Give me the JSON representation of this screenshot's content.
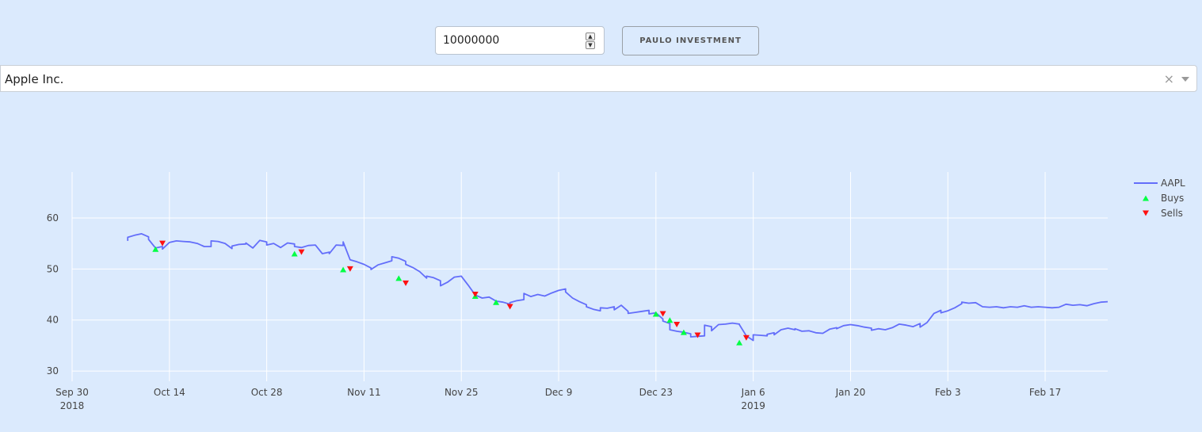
{
  "controls": {
    "amount_value": "10000000",
    "invest_button_label": "PAULO INVESTMENT",
    "company_selected": "Apple Inc.",
    "clear_symbol": "×"
  },
  "colors": {
    "background": "#dbeafd",
    "line": "#636efa",
    "buys": "#00ff44",
    "sells": "#ff1111",
    "grid": "#ffffff"
  },
  "chart_data": {
    "type": "line",
    "x_axis": {
      "type": "date",
      "range": [
        "2018-09-30",
        "2019-02-26"
      ],
      "ticks": [
        {
          "date": "2018-09-30",
          "label": "Sep 30",
          "sub": "2018"
        },
        {
          "date": "2018-10-14",
          "label": "Oct 14",
          "sub": ""
        },
        {
          "date": "2018-10-28",
          "label": "Oct 28",
          "sub": ""
        },
        {
          "date": "2018-11-11",
          "label": "Nov 11",
          "sub": ""
        },
        {
          "date": "2018-11-25",
          "label": "Nov 25",
          "sub": ""
        },
        {
          "date": "2018-12-09",
          "label": "Dec 9",
          "sub": ""
        },
        {
          "date": "2018-12-23",
          "label": "Dec 23",
          "sub": ""
        },
        {
          "date": "2019-01-06",
          "label": "Jan 6",
          "sub": "2019"
        },
        {
          "date": "2019-01-20",
          "label": "Jan 20",
          "sub": ""
        },
        {
          "date": "2019-02-03",
          "label": "Feb 3",
          "sub": ""
        },
        {
          "date": "2019-02-17",
          "label": "Feb 17",
          "sub": ""
        }
      ]
    },
    "y_axis": {
      "range": [
        28,
        69
      ],
      "ticks": [
        30,
        40,
        50,
        60
      ]
    },
    "grid": true,
    "legend": {
      "position": "top-right",
      "entries": [
        "AAPL",
        "Buys",
        "Sells"
      ]
    },
    "series": [
      {
        "name": "AAPL",
        "kind": "line",
        "points": [
          [
            "2018-10-08",
            55.5
          ],
          [
            "2018-10-08",
            56.2
          ],
          [
            "2018-10-09",
            56.6
          ],
          [
            "2018-10-10",
            56.9
          ],
          [
            "2018-10-11",
            56.3
          ],
          [
            "2018-10-11",
            55.8
          ],
          [
            "2018-10-12",
            54.1
          ],
          [
            "2018-10-13",
            54.4
          ],
          [
            "2018-10-13",
            53.9
          ],
          [
            "2018-10-14",
            55.2
          ],
          [
            "2018-10-15",
            55.5
          ],
          [
            "2018-10-16",
            55.4
          ],
          [
            "2018-10-17",
            55.3
          ],
          [
            "2018-10-18",
            55.0
          ],
          [
            "2018-10-19",
            54.4
          ],
          [
            "2018-10-20",
            54.4
          ],
          [
            "2018-10-20",
            55.5
          ],
          [
            "2018-10-21",
            55.4
          ],
          [
            "2018-10-22",
            55.0
          ],
          [
            "2018-10-23",
            54.0
          ],
          [
            "2018-10-23",
            54.5
          ],
          [
            "2018-10-24",
            54.8
          ],
          [
            "2018-10-25",
            54.9
          ],
          [
            "2018-10-25",
            55.1
          ],
          [
            "2018-10-26",
            54.1
          ],
          [
            "2018-10-27",
            55.6
          ],
          [
            "2018-10-28",
            55.3
          ],
          [
            "2018-10-28",
            54.7
          ],
          [
            "2018-10-29",
            55.0
          ],
          [
            "2018-10-30",
            54.2
          ],
          [
            "2018-10-31",
            55.1
          ],
          [
            "2018-11-01",
            54.9
          ],
          [
            "2018-11-01",
            54.4
          ],
          [
            "2018-11-02",
            54.2
          ],
          [
            "2018-11-03",
            54.6
          ],
          [
            "2018-11-04",
            54.7
          ],
          [
            "2018-11-05",
            53.0
          ],
          [
            "2018-11-06",
            53.3
          ],
          [
            "2018-11-06",
            53.0
          ],
          [
            "2018-11-07",
            54.7
          ],
          [
            "2018-11-08",
            54.6
          ],
          [
            "2018-11-08",
            55.3
          ],
          [
            "2018-11-09",
            51.8
          ],
          [
            "2018-11-10",
            51.4
          ],
          [
            "2018-11-11",
            50.9
          ],
          [
            "2018-11-12",
            50.2
          ],
          [
            "2018-11-12",
            49.9
          ],
          [
            "2018-11-13",
            50.8
          ],
          [
            "2018-11-14",
            51.2
          ],
          [
            "2018-11-15",
            51.6
          ],
          [
            "2018-11-15",
            52.4
          ],
          [
            "2018-11-16",
            52.1
          ],
          [
            "2018-11-17",
            51.5
          ],
          [
            "2018-11-17",
            50.9
          ],
          [
            "2018-11-18",
            50.3
          ],
          [
            "2018-11-19",
            49.5
          ],
          [
            "2018-11-20",
            48.2
          ],
          [
            "2018-11-20",
            48.6
          ],
          [
            "2018-11-21",
            48.3
          ],
          [
            "2018-11-22",
            47.7
          ],
          [
            "2018-11-22",
            46.7
          ],
          [
            "2018-11-23",
            47.4
          ],
          [
            "2018-11-24",
            48.4
          ],
          [
            "2018-11-25",
            48.6
          ],
          [
            "2018-11-26",
            46.8
          ],
          [
            "2018-11-27",
            44.9
          ],
          [
            "2018-11-28",
            44.3
          ],
          [
            "2018-11-29",
            44.5
          ],
          [
            "2018-11-30",
            43.7
          ],
          [
            "2018-12-01",
            43.5
          ],
          [
            "2018-12-02",
            43.1
          ],
          [
            "2018-12-02",
            43.4
          ],
          [
            "2018-12-03",
            43.8
          ],
          [
            "2018-12-04",
            44.0
          ],
          [
            "2018-12-04",
            45.2
          ],
          [
            "2018-12-05",
            44.6
          ],
          [
            "2018-12-06",
            45.0
          ],
          [
            "2018-12-07",
            44.7
          ],
          [
            "2018-12-08",
            45.3
          ],
          [
            "2018-12-09",
            45.8
          ],
          [
            "2018-12-10",
            46.1
          ],
          [
            "2018-12-10",
            45.5
          ],
          [
            "2018-12-11",
            44.3
          ],
          [
            "2018-12-12",
            43.6
          ],
          [
            "2018-12-13",
            43.0
          ],
          [
            "2018-12-13",
            42.6
          ],
          [
            "2018-12-14",
            42.1
          ],
          [
            "2018-12-15",
            41.8
          ],
          [
            "2018-12-15",
            42.4
          ],
          [
            "2018-12-16",
            42.3
          ],
          [
            "2018-12-17",
            42.6
          ],
          [
            "2018-12-17",
            42.0
          ],
          [
            "2018-12-18",
            42.9
          ],
          [
            "2018-12-19",
            41.7
          ],
          [
            "2018-12-19",
            41.3
          ],
          [
            "2018-12-20",
            41.5
          ],
          [
            "2018-12-21",
            41.7
          ],
          [
            "2018-12-22",
            41.9
          ],
          [
            "2018-12-22",
            41.2
          ],
          [
            "2018-12-23",
            41.4
          ],
          [
            "2018-12-24",
            40.2
          ],
          [
            "2018-12-24",
            39.8
          ],
          [
            "2018-12-25",
            39.3
          ],
          [
            "2018-12-25",
            38.1
          ],
          [
            "2018-12-26",
            37.8
          ],
          [
            "2018-12-27",
            37.6
          ],
          [
            "2018-12-28",
            37.3
          ],
          [
            "2018-12-28",
            36.7
          ],
          [
            "2018-12-29",
            36.8
          ],
          [
            "2018-12-30",
            36.9
          ],
          [
            "2018-12-30",
            39.0
          ],
          [
            "2018-12-31",
            38.7
          ],
          [
            "2018-12-31",
            37.9
          ],
          [
            "2019-01-01",
            39.1
          ],
          [
            "2019-01-02",
            39.2
          ],
          [
            "2019-01-03",
            39.4
          ],
          [
            "2019-01-04",
            39.2
          ],
          [
            "2019-01-04",
            39.1
          ],
          [
            "2019-01-05",
            36.9
          ],
          [
            "2019-01-06",
            36.0
          ],
          [
            "2019-01-06",
            37.1
          ],
          [
            "2019-01-07",
            37.0
          ],
          [
            "2019-01-08",
            36.9
          ],
          [
            "2019-01-08",
            37.2
          ],
          [
            "2019-01-09",
            37.5
          ],
          [
            "2019-01-09",
            37.1
          ],
          [
            "2019-01-10",
            38.1
          ],
          [
            "2019-01-11",
            38.4
          ],
          [
            "2019-01-12",
            38.1
          ],
          [
            "2019-01-12",
            38.3
          ],
          [
            "2019-01-13",
            37.8
          ],
          [
            "2019-01-14",
            37.9
          ],
          [
            "2019-01-15",
            37.5
          ],
          [
            "2019-01-16",
            37.4
          ],
          [
            "2019-01-17",
            38.2
          ],
          [
            "2019-01-18",
            38.5
          ],
          [
            "2019-01-18",
            38.3
          ],
          [
            "2019-01-19",
            38.9
          ],
          [
            "2019-01-20",
            39.1
          ],
          [
            "2019-01-21",
            38.9
          ],
          [
            "2019-01-22",
            38.6
          ],
          [
            "2019-01-23",
            38.4
          ],
          [
            "2019-01-23",
            38.0
          ],
          [
            "2019-01-24",
            38.3
          ],
          [
            "2019-01-25",
            38.1
          ],
          [
            "2019-01-26",
            38.5
          ],
          [
            "2019-01-27",
            39.2
          ],
          [
            "2019-01-28",
            39.0
          ],
          [
            "2019-01-29",
            38.7
          ],
          [
            "2019-01-30",
            39.3
          ],
          [
            "2019-01-30",
            38.6
          ],
          [
            "2019-01-31",
            39.5
          ],
          [
            "2019-02-01",
            41.3
          ],
          [
            "2019-02-02",
            41.9
          ],
          [
            "2019-02-02",
            41.4
          ],
          [
            "2019-02-03",
            41.8
          ],
          [
            "2019-02-04",
            42.4
          ],
          [
            "2019-02-05",
            43.2
          ],
          [
            "2019-02-05",
            43.5
          ],
          [
            "2019-02-06",
            43.3
          ],
          [
            "2019-02-07",
            43.4
          ],
          [
            "2019-02-08",
            42.6
          ],
          [
            "2019-02-09",
            42.5
          ],
          [
            "2019-02-10",
            42.6
          ],
          [
            "2019-02-11",
            42.4
          ],
          [
            "2019-02-12",
            42.6
          ],
          [
            "2019-02-13",
            42.5
          ],
          [
            "2019-02-14",
            42.8
          ],
          [
            "2019-02-15",
            42.5
          ],
          [
            "2019-02-16",
            42.6
          ],
          [
            "2019-02-17",
            42.5
          ],
          [
            "2019-02-18",
            42.4
          ],
          [
            "2019-02-19",
            42.5
          ],
          [
            "2019-02-20",
            43.1
          ],
          [
            "2019-02-21",
            42.9
          ],
          [
            "2019-02-22",
            43.0
          ],
          [
            "2019-02-23",
            42.8
          ],
          [
            "2019-02-24",
            43.2
          ],
          [
            "2019-02-25",
            43.5
          ],
          [
            "2019-02-26",
            43.6
          ]
        ]
      },
      {
        "name": "Buys",
        "kind": "markers-up",
        "points": [
          [
            "2018-10-12",
            53.9
          ],
          [
            "2018-11-01",
            53.0
          ],
          [
            "2018-11-08",
            49.9
          ],
          [
            "2018-11-16",
            48.2
          ],
          [
            "2018-11-27",
            44.7
          ],
          [
            "2018-11-30",
            43.5
          ],
          [
            "2018-12-23",
            41.2
          ],
          [
            "2018-12-25",
            40.0
          ],
          [
            "2018-12-27",
            37.6
          ],
          [
            "2019-01-04",
            35.6
          ]
        ]
      },
      {
        "name": "Sells",
        "kind": "markers-down",
        "points": [
          [
            "2018-10-13",
            55.0
          ],
          [
            "2018-11-02",
            53.3
          ],
          [
            "2018-11-09",
            50.0
          ],
          [
            "2018-11-17",
            47.2
          ],
          [
            "2018-11-27",
            45.0
          ],
          [
            "2018-12-02",
            42.6
          ],
          [
            "2018-12-24",
            41.2
          ],
          [
            "2018-12-26",
            39.1
          ],
          [
            "2018-12-29",
            37.0
          ],
          [
            "2019-01-05",
            36.5
          ]
        ]
      }
    ]
  }
}
